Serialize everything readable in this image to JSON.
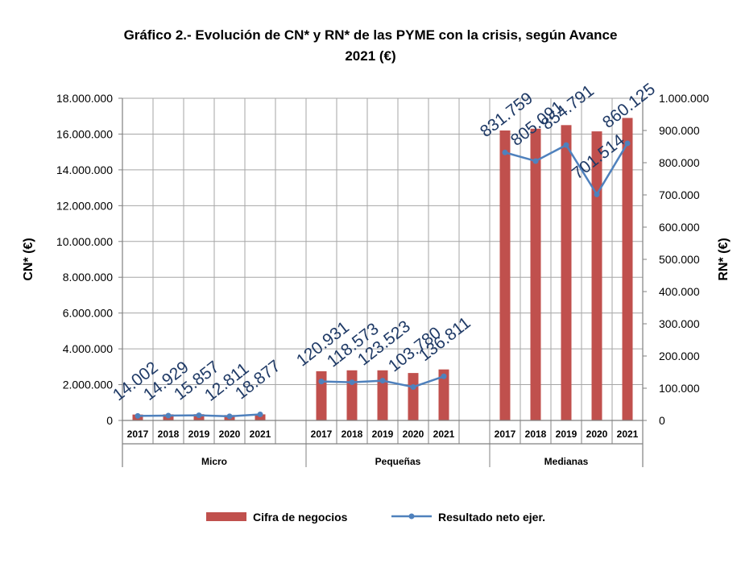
{
  "chart_data": {
    "type": "bar",
    "title_line1": "Gráfico 2.- Evolución de CN* y RN* de las PYME con la crisis, según Avance",
    "title_line2": "2021 (€)",
    "ylabel_left": "CN* (€)",
    "ylabel_right": "RN* (€)",
    "ylim_left": [
      0,
      18000000
    ],
    "ylim_right": [
      0,
      1000000
    ],
    "yticks_left": [
      "0",
      "2.000.000",
      "4.000.000",
      "6.000.000",
      "8.000.000",
      "10.000.000",
      "12.000.000",
      "14.000.000",
      "16.000.000",
      "18.000.000"
    ],
    "yticks_right": [
      "0",
      "100.000",
      "200.000",
      "300.000",
      "400.000",
      "500.000",
      "600.000",
      "700.000",
      "800.000",
      "900.000",
      "1.000.000"
    ],
    "groups": [
      {
        "name": "Micro",
        "years": [
          "2017",
          "2018",
          "2019",
          "2020",
          "2021"
        ],
        "cn": [
          330000,
          340000,
          350000,
          300000,
          340000
        ],
        "rn": [
          14002,
          14929,
          15857,
          12811,
          18877
        ],
        "rn_labels": [
          "14.002",
          "14.929",
          "15.857",
          "12.811",
          "18.877"
        ]
      },
      {
        "name": "Pequeñas",
        "years": [
          "2017",
          "2018",
          "2019",
          "2020",
          "2021"
        ],
        "cn": [
          2750000,
          2800000,
          2800000,
          2650000,
          2850000
        ],
        "rn": [
          120931,
          118573,
          123523,
          103780,
          136811
        ],
        "rn_labels": [
          "120.931",
          "118.573",
          "123.523",
          "103.780",
          "136.811"
        ]
      },
      {
        "name": "Medianas",
        "years": [
          "2017",
          "2018",
          "2019",
          "2020",
          "2021"
        ],
        "cn": [
          16200000,
          16300000,
          16500000,
          16150000,
          16900000
        ],
        "rn": [
          831759,
          805091,
          854791,
          701514,
          860125
        ],
        "rn_labels": [
          "831.759",
          "805.091",
          "854.791",
          "701.514",
          "860.125"
        ]
      }
    ],
    "legend": {
      "bar": "Cifra de negocios",
      "line": "Resultado neto ejer.",
      "placement": "bottom"
    },
    "colors": {
      "bar": "#c0504d",
      "line": "#4f81bd",
      "label": "#1f3a66",
      "grid": "#a6a6a6"
    },
    "grid": true
  }
}
